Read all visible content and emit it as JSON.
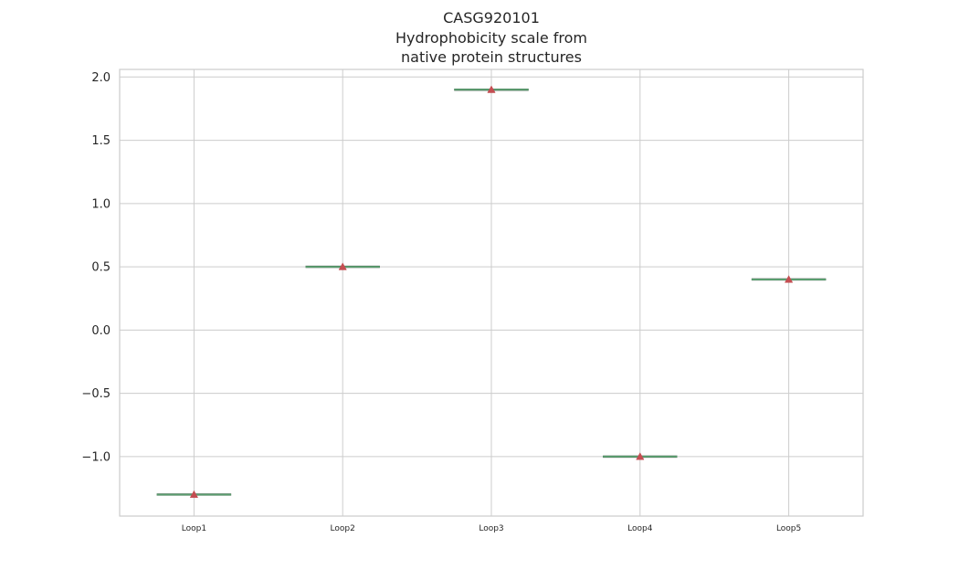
{
  "chart_data": {
    "type": "box",
    "title_lines": [
      "CASG920101",
      "Hydrophobicity scale from",
      "native protein structures"
    ],
    "categories": [
      "Loop1",
      "Loop2",
      "Loop3",
      "Loop4",
      "Loop5"
    ],
    "series": [
      {
        "values": [
          -1.3,
          0.5,
          1.9,
          -1.0,
          0.4
        ]
      }
    ],
    "mean_marker": "triangle",
    "ylim": [
      -1.47,
      2.06
    ],
    "yticks": [
      -1.0,
      -0.5,
      0.0,
      0.5,
      1.0,
      1.5,
      2.0
    ],
    "ytick_labels": [
      "−1.0",
      "−0.5",
      "0.0",
      "0.5",
      "1.0",
      "1.5",
      "2.0"
    ],
    "grid": true,
    "colors": {
      "median": "#5a9e6f",
      "mean_marker": "#c44e52",
      "grid": "#cccccc",
      "spine": "#cccccc",
      "text": "#262626"
    }
  }
}
